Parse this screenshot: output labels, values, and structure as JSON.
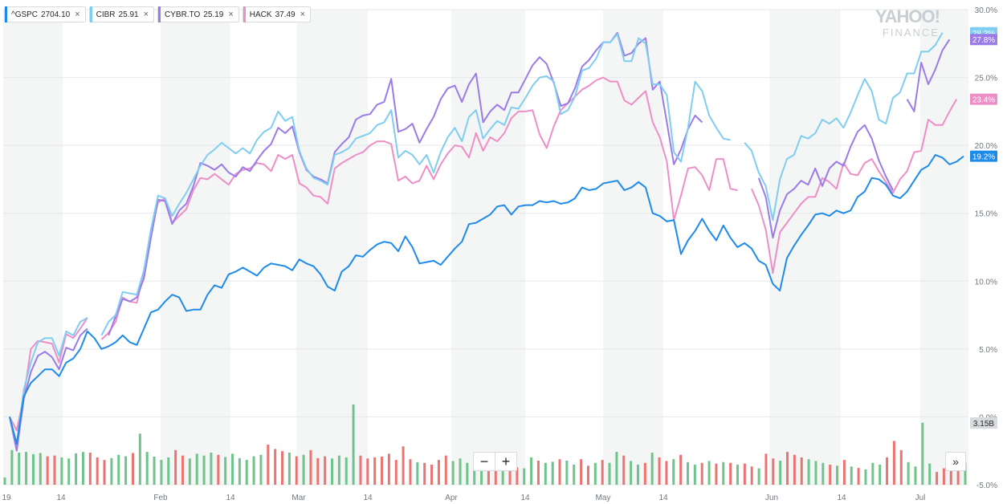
{
  "legend": [
    {
      "symbol": "^GSPC",
      "value": "2704.10",
      "color": "#1f8be8"
    },
    {
      "symbol": "CIBR",
      "value": "25.91",
      "color": "#7fcdf1"
    },
    {
      "symbol": "CYBR.TO",
      "value": "25.19",
      "color": "#9a7be8"
    },
    {
      "symbol": "HACK",
      "value": "37.49",
      "color": "#ee8ec7"
    }
  ],
  "close_glyph": "×",
  "watermark": {
    "line1": "YAHOO!",
    "line2": "FINANCE"
  },
  "controls": {
    "zoom_out": "−",
    "zoom_in": "+",
    "expand": "»"
  },
  "chart_data": {
    "type": "line",
    "x_tick_labels": [
      "19",
      "14",
      "Feb",
      "14",
      "Mar",
      "14",
      "Apr",
      "14",
      "May",
      "14",
      "Jun",
      "14",
      "Jul"
    ],
    "y_ticks": [
      "30.0%",
      "25.0%",
      "20.0%",
      "15.0%",
      "10.0%",
      "5.0%",
      "0.0%",
      "-5.0%"
    ],
    "ylim": [
      -5,
      30
    ],
    "grid": true,
    "legend_position": "top-left",
    "end_labels": [
      {
        "series": "CIBR",
        "text": "28.3%",
        "value": 28.3,
        "color": "#7fcdf1"
      },
      {
        "series": "CYBR.TO",
        "text": "27.8%",
        "value": 27.8,
        "color": "#9a7be8"
      },
      {
        "series": "HACK",
        "text": "23.4%",
        "value": 23.4,
        "color": "#ee8ec7"
      },
      {
        "series": "^GSPC",
        "text": "19.2%",
        "value": 19.2,
        "color": "#1f8be8"
      }
    ],
    "volume_label": "3.15B",
    "series": [
      {
        "name": "^GSPC",
        "color": "#1f8be8",
        "values": [
          0,
          -2,
          1.5,
          2.5,
          3,
          3.5,
          3.5,
          3,
          4,
          4.3,
          5,
          6.3,
          5.8,
          5,
          5.2,
          5.5,
          6,
          5.5,
          5.3,
          6.5,
          7.7,
          7.9,
          8.5,
          9,
          8.8,
          7.8,
          7.9,
          7.9,
          9,
          9.7,
          9.5,
          10.5,
          10.7,
          11,
          10.7,
          10.4,
          11,
          11.3,
          11.2,
          11.1,
          10.8,
          11.6,
          11.3,
          11.1,
          10.5,
          9.6,
          9.3,
          10.7,
          11.1,
          11.9,
          11.8,
          12.3,
          12.7,
          12.9,
          12.8,
          12.2,
          13.3,
          12.5,
          11.3,
          11.4,
          11.5,
          11.2,
          11.8,
          12.4,
          12.9,
          14.2,
          14.3,
          14.6,
          14.9,
          15.5,
          15.6,
          14.9,
          15.5,
          15.6,
          15.6,
          15.9,
          15.8,
          15.9,
          15.7,
          15.8,
          16.1,
          16.9,
          16.7,
          16.8,
          17.2,
          17.3,
          17.4,
          16.7,
          16.9,
          17.3,
          16.9,
          15,
          14.8,
          14.4,
          14.5,
          12,
          13,
          13.7,
          14.6,
          13.7,
          13,
          14.1,
          13.2,
          12.5,
          12.8,
          12.4,
          11.5,
          11.2,
          9.8,
          9.3,
          11.7,
          12.6,
          13.4,
          14.1,
          14.9,
          15,
          14.8,
          15.2,
          15,
          15.2,
          16.2,
          16.6,
          17.6,
          17.5,
          17.1,
          16.3,
          16.1,
          16.6,
          17.4,
          18.2,
          18.5,
          19.3,
          19.1,
          18.6,
          18.8,
          19.2
        ]
      },
      {
        "name": "CIBR",
        "color": "#7fcdf1",
        "values": [
          0,
          -2,
          2,
          4,
          5.5,
          5.8,
          5.8,
          4.5,
          6.3,
          6,
          7,
          7.3,
          null,
          6,
          7,
          7.5,
          9.2,
          9.1,
          9,
          10.8,
          13.8,
          16.3,
          16.1,
          14.8,
          15.7,
          16.5,
          17.5,
          18.5,
          19.3,
          19.7,
          20.2,
          19.8,
          19.4,
          19.8,
          19.4,
          20.4,
          21,
          21.3,
          22.5,
          21.8,
          22.1,
          19.6,
          18.3,
          17.6,
          17.4,
          17.1,
          19.3,
          19.5,
          19.8,
          20.5,
          20.7,
          20.9,
          21.5,
          21.7,
          22.6,
          19.1,
          19.6,
          19.3,
          18.6,
          19.3,
          18,
          19.5,
          20.6,
          21.3,
          20.3,
          22.1,
          22.6,
          20.5,
          21.2,
          21.8,
          21.5,
          22.8,
          22.7,
          23.5,
          24.4,
          25,
          25.1,
          24.7,
          22.3,
          22.6,
          23.6,
          25.5,
          25.7,
          26.4,
          27.6,
          27.6,
          28.2,
          26.2,
          26.2,
          27.9,
          27.5,
          24.5,
          24.5,
          23.7,
          19.5,
          18.8,
          21.3,
          24.7,
          24,
          22.2,
          21.3,
          20.5,
          20.4,
          null,
          20.2,
          19.6,
          18,
          17,
          14.5,
          17.5,
          19,
          19.3,
          20.7,
          20.5,
          20.9,
          21.9,
          21.6,
          22,
          21.3,
          22.4,
          23.7,
          24.9,
          24,
          21.9,
          21.6,
          23.5,
          23.9,
          25.3,
          25.3,
          26.9,
          26.9,
          27.4,
          28.3
        ]
      },
      {
        "name": "CYBR.TO",
        "color": "#9a7be8",
        "values": [
          0,
          -2.5,
          1.3,
          3.3,
          4.5,
          4.8,
          4.4,
          3.5,
          5.1,
          4.9,
          6,
          6.5,
          null,
          null,
          6,
          7.4,
          8.7,
          8.5,
          8.8,
          10.2,
          13.2,
          16,
          15.9,
          14.2,
          15.2,
          15.7,
          17,
          18.7,
          18.5,
          18.2,
          18.6,
          18,
          17.7,
          18.4,
          18.1,
          18.9,
          19.6,
          20.1,
          21.3,
          20.9,
          21.4,
          19.5,
          18.2,
          17.7,
          17.5,
          17.2,
          19.5,
          20.1,
          20.6,
          21.9,
          22.2,
          22.3,
          23,
          23.2,
          24.9,
          21,
          21.2,
          21.6,
          20.2,
          21.2,
          22.1,
          23.4,
          24.2,
          24.4,
          23.2,
          24.5,
          25.3,
          21.7,
          22.5,
          23,
          22.6,
          23.9,
          23.9,
          24.9,
          25.9,
          26.5,
          26,
          24.6,
          22.9,
          23.1,
          24.2,
          25.8,
          26.3,
          27,
          27.6,
          27.6,
          28.3,
          26.6,
          26.8,
          27.5,
          27.9,
          24.1,
          24.7,
          21.7,
          18.6,
          19.7,
          21.2,
          22.2,
          21.7,
          null,
          null,
          null,
          null,
          null,
          null,
          null,
          17.6,
          16.2,
          13.2,
          15.2,
          16.4,
          16.8,
          17.4,
          17.1,
          18.3,
          17,
          18.3,
          18.8,
          18.5,
          19.9,
          21,
          21.5,
          20.5,
          18.9,
          17.7,
          16.7,
          null,
          23.4,
          22.5,
          26.1,
          24.5,
          25.6,
          27,
          27.8
        ]
      },
      {
        "name": "HACK",
        "color": "#ee8ec7",
        "values": [
          0,
          -1,
          1.5,
          5,
          5.6,
          5.5,
          5.4,
          4,
          6.1,
          5.8,
          6.5,
          7.3,
          null,
          5.7,
          6.2,
          7,
          8.8,
          8.5,
          8.4,
          10.7,
          13.8,
          15.8,
          16.1,
          14.3,
          14.8,
          15.3,
          16.7,
          17.6,
          17.5,
          17.9,
          17.5,
          17.1,
          17.9,
          18.2,
          18.3,
          18.7,
          18.6,
          18.1,
          19.3,
          19,
          19.3,
          17.2,
          16.9,
          16.3,
          16.2,
          15.7,
          18.3,
          18.7,
          19,
          19.3,
          19.5,
          20,
          20.3,
          20.3,
          20.1,
          17.4,
          17.7,
          17.2,
          17.4,
          18.5,
          17.5,
          18.6,
          19.4,
          20,
          19.9,
          19.1,
          20.9,
          19.6,
          20.6,
          20.3,
          20.9,
          22,
          22.5,
          22.5,
          22.6,
          20.8,
          19.8,
          21.4,
          22.6,
          23.1,
          23.6,
          24.1,
          24.4,
          24.8,
          25,
          24.7,
          24.7,
          23.3,
          23,
          23.5,
          24,
          21.7,
          20.6,
          18.8,
          14.5,
          16.3,
          18.3,
          18.4,
          17.8,
          16.7,
          19,
          19,
          16.8,
          16.7,
          null,
          16.8,
          15.6,
          13.8,
          10.6,
          13.6,
          14.3,
          15,
          15.7,
          16.2,
          16.2,
          17.6,
          17.3,
          16.8,
          18.7,
          17.9,
          17.8,
          18.7,
          19,
          18.1,
          17.3,
          16.5,
          17.5,
          18.1,
          19.5,
          19.6,
          21.9,
          21.5,
          21.5,
          22.5,
          23.4
        ]
      }
    ],
    "volume": [
      {
        "v": 0.2,
        "dir": "up"
      },
      {
        "v": 0.95,
        "dir": "up"
      },
      {
        "v": 0.88,
        "dir": "up"
      },
      {
        "v": 0.9,
        "dir": "up"
      },
      {
        "v": 0.84,
        "dir": "up"
      },
      {
        "v": 0.87,
        "dir": "up"
      },
      {
        "v": 0.78,
        "dir": "down"
      },
      {
        "v": 0.8,
        "dir": "down"
      },
      {
        "v": 0.75,
        "dir": "up"
      },
      {
        "v": 0.72,
        "dir": "up"
      },
      {
        "v": 0.86,
        "dir": "up"
      },
      {
        "v": 0.9,
        "dir": "up"
      },
      {
        "v": 0.88,
        "dir": "down"
      },
      {
        "v": 0.75,
        "dir": "down"
      },
      {
        "v": 0.68,
        "dir": "down"
      },
      {
        "v": 0.73,
        "dir": "up"
      },
      {
        "v": 0.82,
        "dir": "up"
      },
      {
        "v": 0.78,
        "dir": "up"
      },
      {
        "v": 0.87,
        "dir": "down"
      },
      {
        "v": 1.4,
        "dir": "up"
      },
      {
        "v": 0.9,
        "dir": "up"
      },
      {
        "v": 0.77,
        "dir": "up"
      },
      {
        "v": 0.68,
        "dir": "up"
      },
      {
        "v": 0.75,
        "dir": "up"
      },
      {
        "v": 0.95,
        "dir": "down"
      },
      {
        "v": 0.8,
        "dir": "down"
      },
      {
        "v": 0.72,
        "dir": "up"
      },
      {
        "v": 0.85,
        "dir": "up"
      },
      {
        "v": 0.8,
        "dir": "up"
      },
      {
        "v": 0.88,
        "dir": "up"
      },
      {
        "v": 0.82,
        "dir": "down"
      },
      {
        "v": 0.76,
        "dir": "up"
      },
      {
        "v": 0.85,
        "dir": "up"
      },
      {
        "v": 0.73,
        "dir": "up"
      },
      {
        "v": 0.68,
        "dir": "up"
      },
      {
        "v": 0.78,
        "dir": "up"
      },
      {
        "v": 0.82,
        "dir": "up"
      },
      {
        "v": 1.1,
        "dir": "down"
      },
      {
        "v": 0.98,
        "dir": "down"
      },
      {
        "v": 0.92,
        "dir": "down"
      },
      {
        "v": 0.88,
        "dir": "up"
      },
      {
        "v": 0.78,
        "dir": "down"
      },
      {
        "v": 0.82,
        "dir": "up"
      },
      {
        "v": 0.95,
        "dir": "down"
      },
      {
        "v": 0.73,
        "dir": "down"
      },
      {
        "v": 0.78,
        "dir": "down"
      },
      {
        "v": 0.72,
        "dir": "up"
      },
      {
        "v": 0.8,
        "dir": "up"
      },
      {
        "v": 0.75,
        "dir": "up"
      },
      {
        "v": 2.2,
        "dir": "up"
      },
      {
        "v": 0.8,
        "dir": "down"
      },
      {
        "v": 0.72,
        "dir": "down"
      },
      {
        "v": 0.75,
        "dir": "down"
      },
      {
        "v": 0.77,
        "dir": "down"
      },
      {
        "v": 0.85,
        "dir": "down"
      },
      {
        "v": 0.68,
        "dir": "down"
      },
      {
        "v": 1.05,
        "dir": "down"
      },
      {
        "v": 0.7,
        "dir": "down"
      },
      {
        "v": 0.62,
        "dir": "up"
      },
      {
        "v": 0.6,
        "dir": "down"
      },
      {
        "v": 0.55,
        "dir": "down"
      },
      {
        "v": 0.68,
        "dir": "down"
      },
      {
        "v": 0.8,
        "dir": "down"
      },
      {
        "v": 0.65,
        "dir": "up"
      },
      {
        "v": 0.72,
        "dir": "up"
      },
      {
        "v": 0.6,
        "dir": "up"
      },
      {
        "v": 0.5,
        "dir": "up"
      },
      {
        "v": 0.5,
        "dir": "up"
      },
      {
        "v": 0.58,
        "dir": "down"
      },
      {
        "v": 0.47,
        "dir": "down"
      },
      {
        "v": 0.52,
        "dir": "up"
      },
      {
        "v": 0.55,
        "dir": "down"
      },
      {
        "v": 0.48,
        "dir": "down"
      },
      {
        "v": 0.45,
        "dir": "up"
      },
      {
        "v": 0.75,
        "dir": "up"
      },
      {
        "v": 0.66,
        "dir": "down"
      },
      {
        "v": 0.6,
        "dir": "up"
      },
      {
        "v": 0.63,
        "dir": "up"
      },
      {
        "v": 0.7,
        "dir": "down"
      },
      {
        "v": 0.66,
        "dir": "up"
      },
      {
        "v": 0.55,
        "dir": "up"
      },
      {
        "v": 0.7,
        "dir": "down"
      },
      {
        "v": 0.52,
        "dir": "down"
      },
      {
        "v": 0.6,
        "dir": "up"
      },
      {
        "v": 0.68,
        "dir": "down"
      },
      {
        "v": 0.6,
        "dir": "up"
      },
      {
        "v": 0.9,
        "dir": "up"
      },
      {
        "v": 0.8,
        "dir": "down"
      },
      {
        "v": 0.65,
        "dir": "up"
      },
      {
        "v": 0.55,
        "dir": "up"
      },
      {
        "v": 0.6,
        "dir": "down"
      },
      {
        "v": 0.88,
        "dir": "up"
      },
      {
        "v": 0.75,
        "dir": "down"
      },
      {
        "v": 0.65,
        "dir": "down"
      },
      {
        "v": 0.7,
        "dir": "up"
      },
      {
        "v": 0.82,
        "dir": "down"
      },
      {
        "v": 0.62,
        "dir": "up"
      },
      {
        "v": 0.55,
        "dir": "up"
      },
      {
        "v": 0.6,
        "dir": "down"
      },
      {
        "v": 0.65,
        "dir": "up"
      },
      {
        "v": 0.58,
        "dir": "down"
      },
      {
        "v": 0.62,
        "dir": "up"
      },
      {
        "v": 0.6,
        "dir": "down"
      },
      {
        "v": 0.55,
        "dir": "up"
      },
      {
        "v": 0.58,
        "dir": "down"
      },
      {
        "v": 0.5,
        "dir": "down"
      },
      {
        "v": 0.45,
        "dir": "up"
      },
      {
        "v": 0.85,
        "dir": "down"
      },
      {
        "v": 0.72,
        "dir": "down"
      },
      {
        "v": 0.66,
        "dir": "up"
      },
      {
        "v": 0.9,
        "dir": "down"
      },
      {
        "v": 0.82,
        "dir": "down"
      },
      {
        "v": 0.75,
        "dir": "down"
      },
      {
        "v": 0.7,
        "dir": "up"
      },
      {
        "v": 0.65,
        "dir": "up"
      },
      {
        "v": 0.6,
        "dir": "up"
      },
      {
        "v": 0.55,
        "dir": "down"
      },
      {
        "v": 0.52,
        "dir": "up"
      },
      {
        "v": 0.68,
        "dir": "down"
      },
      {
        "v": 0.5,
        "dir": "up"
      },
      {
        "v": 0.46,
        "dir": "down"
      },
      {
        "v": 0.42,
        "dir": "up"
      },
      {
        "v": 0.6,
        "dir": "up"
      },
      {
        "v": 0.55,
        "dir": "up"
      },
      {
        "v": 0.75,
        "dir": "down"
      },
      {
        "v": 1.2,
        "dir": "down"
      },
      {
        "v": 0.95,
        "dir": "down"
      },
      {
        "v": 0.62,
        "dir": "up"
      },
      {
        "v": 0.5,
        "dir": "up"
      },
      {
        "v": 1.7,
        "dir": "up"
      },
      {
        "v": 0.58,
        "dir": "up"
      },
      {
        "v": 0.35,
        "dir": "down"
      },
      {
        "v": 0.45,
        "dir": "down"
      },
      {
        "v": 0.52,
        "dir": "down"
      },
      {
        "v": 0.55,
        "dir": "down"
      },
      {
        "v": 0.6,
        "dir": "up"
      }
    ]
  }
}
